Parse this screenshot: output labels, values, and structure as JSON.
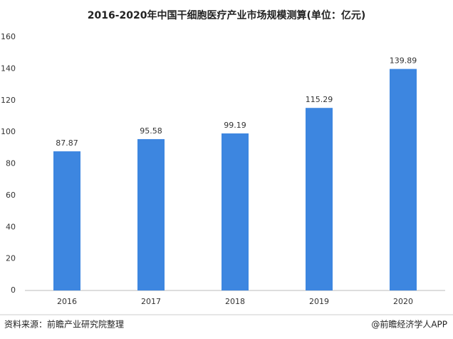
{
  "chart_data": {
    "type": "bar",
    "title": "2016-2020年中国干细胞医疗产业市场规模测算(单位：亿元)",
    "categories": [
      "2016",
      "2017",
      "2018",
      "2019",
      "2020"
    ],
    "values": [
      87.87,
      95.58,
      99.19,
      115.29,
      139.89
    ],
    "color": "#3d86e0",
    "ylim": [
      0,
      160
    ],
    "yticks": [
      0,
      20,
      40,
      60,
      80,
      100,
      120,
      140,
      160
    ],
    "grid": false,
    "source": "资料来源：前瞻产业研究院整理",
    "credit": "@前瞻经济学人APP"
  }
}
